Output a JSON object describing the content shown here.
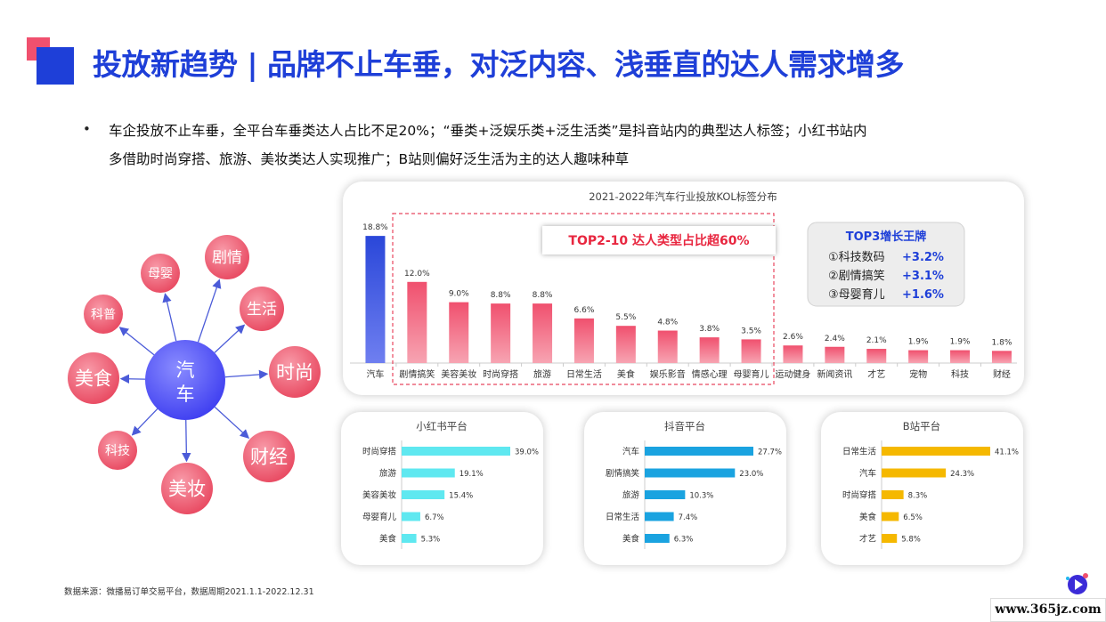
{
  "title": "投放新趋势 | 品牌不止车垂，对泛内容、浅垂直的达人需求增多",
  "bullet_line1": "车企投放不止车垂，全平台车垂类达人占比不足20%；“垂类+泛娱乐类+泛生活类”是抖音站内的典型达人标签；小红书站内",
  "bullet_line2": "多借助时尚穿搭、旅游、美妆类达人实现推广；B站则偏好泛生活为主的达人趣味种草",
  "bullet_marker": "•",
  "network": {
    "center": [
      "汽",
      "车"
    ],
    "nodes": [
      "剧情",
      "母婴",
      "生活",
      "科普",
      "时尚",
      "美食",
      "科技",
      "财经",
      "美妆"
    ]
  },
  "highlight_label": "TOP2-10 达人类型占比超60%",
  "top3": {
    "title": "TOP3增长王牌",
    "items": [
      {
        "label": "①科技数码",
        "value": "+3.2%"
      },
      {
        "label": "②剧情搞笑",
        "value": "+3.1%"
      },
      {
        "label": "③母婴育儿",
        "value": "+1.6%"
      }
    ]
  },
  "chart_data": [
    {
      "type": "bar",
      "title": "2021-2022年汽车行业投放KOL标签分布",
      "categories": [
        "汽车",
        "剧情搞笑",
        "美容美妆",
        "时尚穿搭",
        "旅游",
        "日常生活",
        "美食",
        "娱乐影音",
        "情感心理",
        "母婴育儿",
        "运动健身",
        "新闻资讯",
        "才艺",
        "宠物",
        "科技",
        "财经"
      ],
      "values": [
        18.8,
        12.0,
        9.0,
        8.8,
        8.8,
        6.6,
        5.5,
        4.8,
        3.8,
        3.5,
        2.6,
        2.4,
        2.1,
        1.9,
        1.9,
        1.8
      ],
      "value_labels": [
        "18.8%",
        "12.0%",
        "9.0%",
        "8.8%",
        "8.8%",
        "6.6%",
        "5.5%",
        "4.8%",
        "3.8%",
        "3.5%",
        "2.6%",
        "2.4%",
        "2.1%",
        "1.9%",
        "1.9%",
        "1.8%"
      ],
      "colors": {
        "highlight": "#2a47d9",
        "bar": "#f0506e"
      }
    },
    {
      "type": "bar",
      "orientation": "horizontal",
      "title": "小红书平台",
      "categories": [
        "时尚穿搭",
        "旅游",
        "美容美妆",
        "母婴育儿",
        "美食"
      ],
      "values": [
        39.0,
        19.1,
        15.4,
        6.7,
        5.3
      ],
      "value_labels": [
        "39.0%",
        "19.1%",
        "15.4%",
        "6.7%",
        "5.3%"
      ],
      "color": "#5fe8f0"
    },
    {
      "type": "bar",
      "orientation": "horizontal",
      "title": "抖音平台",
      "categories": [
        "汽车",
        "剧情搞笑",
        "旅游",
        "日常生活",
        "美食"
      ],
      "values": [
        27.7,
        23.0,
        10.3,
        7.4,
        6.3
      ],
      "value_labels": [
        "27.7%",
        "23.0%",
        "10.3%",
        "7.4%",
        "6.3%"
      ],
      "color": "#1aa3e0"
    },
    {
      "type": "bar",
      "orientation": "horizontal",
      "title": "B站平台",
      "categories": [
        "日常生活",
        "汽车",
        "时尚穿搭",
        "美食",
        "才艺"
      ],
      "values": [
        41.1,
        24.3,
        8.3,
        6.5,
        5.8
      ],
      "value_labels": [
        "41.1%",
        "24.3%",
        "8.3%",
        "6.5%",
        "5.8%"
      ],
      "color": "#f5b800"
    }
  ],
  "source": "数据来源：微播易订单交易平台，数据周期2021.1.1-2022.12.31",
  "site": "www.365jz.com"
}
